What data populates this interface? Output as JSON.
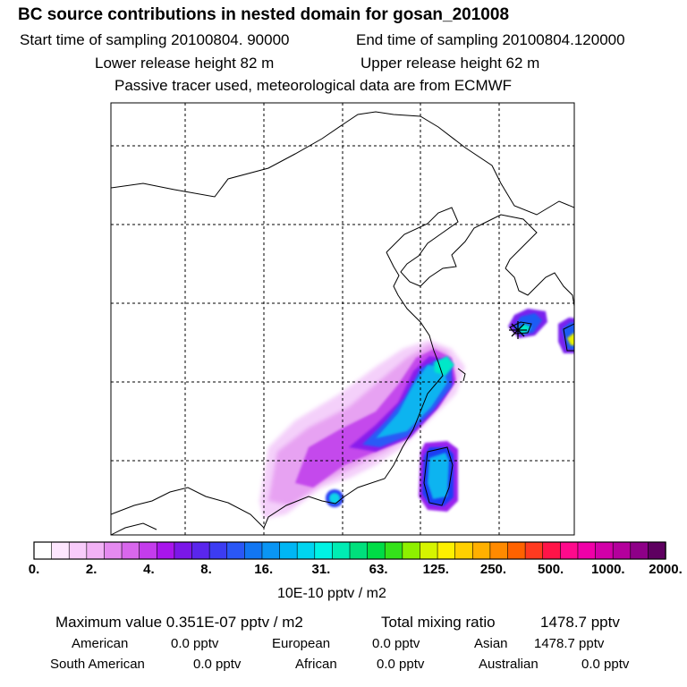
{
  "header": {
    "title": "BC  source contributions in nested domain for gosan_201008",
    "start_time": "Start time of sampling 20100804. 90000",
    "end_time": "End time of sampling 20100804.120000",
    "lower_release": "Lower release height   82 m",
    "upper_release": "Upper release height   62 m",
    "tracer_note": "Passive tracer used, meteorological data are from ECMWF"
  },
  "colorbar": {
    "tick_labels": [
      "0.",
      "2.",
      "4.",
      "8.",
      "16.",
      "31.",
      "63.",
      "125.",
      "250.",
      "500.",
      "1000.",
      "2000."
    ],
    "units": "10E-10 pptv / m2",
    "colors": [
      "#ffffff",
      "#fde6fe",
      "#f8ccfb",
      "#f2b2f6",
      "#e58af0",
      "#d867ec",
      "#c43cec",
      "#a815ec",
      "#7b17e8",
      "#5a26ec",
      "#3c3cf2",
      "#2a57f6",
      "#1276f2",
      "#0a95f4",
      "#00b6f4",
      "#00d4f0",
      "#00f2e4",
      "#00ecb4",
      "#00e07c",
      "#00dd46",
      "#34e21a",
      "#8ef000",
      "#d6f400",
      "#fdf000",
      "#ffd000",
      "#ffb000",
      "#ff8a00",
      "#ff6200",
      "#ff3a20",
      "#ff1448",
      "#ff0a8c",
      "#f000a8",
      "#d200a8",
      "#b4009c",
      "#8e0088",
      "#5e0060"
    ]
  },
  "stats": {
    "max_label": "Maximum value  0.351E-07 pptv / m2",
    "total_label": "Total mixing ratio",
    "total_value": "1478.7 pptv"
  },
  "regions": [
    {
      "name": "American",
      "value": "0.0 pptv"
    },
    {
      "name": "European",
      "value": "0.0 pptv"
    },
    {
      "name": "Asian",
      "value": "1478.7 pptv"
    },
    {
      "name": "South American",
      "value": "0.0 pptv"
    },
    {
      "name": "African",
      "value": "0.0 pptv"
    },
    {
      "name": "Australian",
      "value": "0.0 pptv"
    }
  ],
  "map": {
    "receptor_marker": "star-marker",
    "colors": {
      "light": "#f2c4f8",
      "mid": "#d070ec",
      "purple": "#a020f0",
      "blue": "#1a3cf4",
      "cyan": "#10b4f0",
      "teal": "#00e8d0",
      "yellow": "#e8f000"
    }
  }
}
